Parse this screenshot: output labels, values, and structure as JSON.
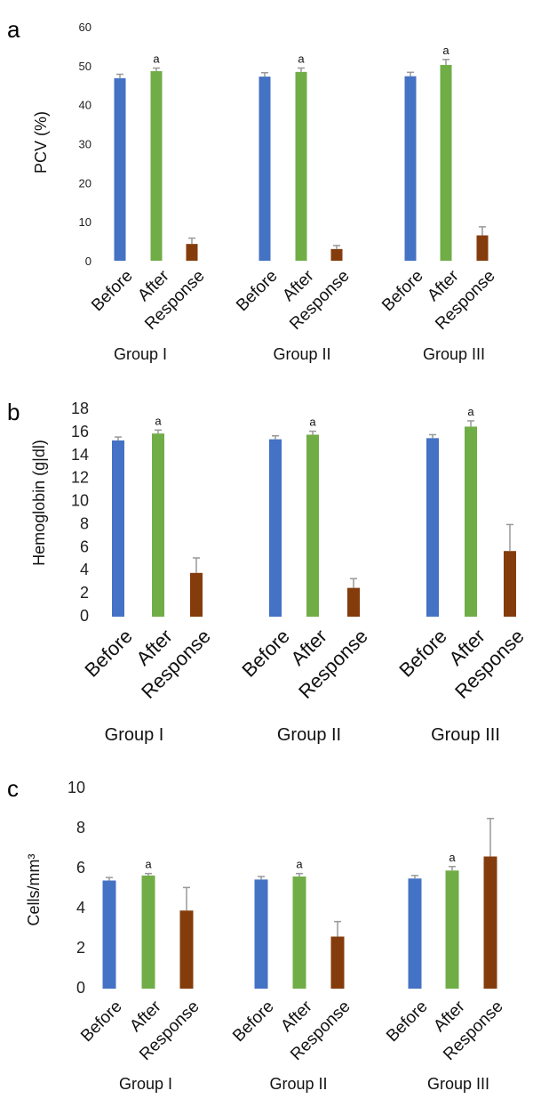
{
  "colors": {
    "before": "#4472c4",
    "after": "#70ad47",
    "response": "#843c0c",
    "error_bar": "#999999"
  },
  "categories": [
    "Before",
    "After",
    "Response"
  ],
  "chart_data": [
    {
      "type": "bar",
      "panel": "a",
      "ylabel": "PCV (%)",
      "ylim": [
        0,
        60
      ],
      "yticks": [
        "0",
        "10",
        "20",
        "30",
        "40",
        "50",
        "60"
      ],
      "groups": [
        "Group I",
        "Group II",
        "Group III"
      ],
      "series": [
        {
          "key": "before",
          "values": [
            46.8,
            47.2,
            47.3
          ],
          "errors": [
            1.0,
            1.0,
            1.0
          ]
        },
        {
          "key": "after",
          "values": [
            48.6,
            48.4,
            50.2
          ],
          "errors": [
            0.8,
            1.0,
            1.4
          ]
        },
        {
          "key": "response",
          "values": [
            4.3,
            3.0,
            6.5
          ],
          "errors": [
            1.5,
            0.9,
            2.2
          ]
        }
      ],
      "significance": [
        "a",
        "a",
        "a"
      ]
    },
    {
      "type": "bar",
      "panel": "b",
      "ylabel": "Hemoglobin (g|dl)",
      "ylim": [
        0,
        18
      ],
      "yticks": [
        "0",
        "2",
        "4",
        "6",
        "8",
        "10",
        "12",
        "14",
        "16",
        "18"
      ],
      "groups": [
        "Group I",
        "Group II",
        "Group III"
      ],
      "series": [
        {
          "key": "before",
          "values": [
            15.3,
            15.4,
            15.5
          ],
          "errors": [
            0.3,
            0.3,
            0.3
          ]
        },
        {
          "key": "after",
          "values": [
            15.9,
            15.8,
            16.5
          ],
          "errors": [
            0.3,
            0.3,
            0.5
          ]
        },
        {
          "key": "response",
          "values": [
            3.8,
            2.5,
            5.7
          ],
          "errors": [
            1.3,
            0.8,
            2.3
          ]
        }
      ],
      "significance": [
        "a",
        "a",
        "a"
      ]
    },
    {
      "type": "bar",
      "panel": "c",
      "ylabel": "Cells/mm³",
      "ylim": [
        0,
        10
      ],
      "yticks": [
        "0",
        "2",
        "4",
        "6",
        "8",
        "10"
      ],
      "groups": [
        "Group I",
        "Group II",
        "Group III"
      ],
      "series": [
        {
          "key": "before",
          "values": [
            5.4,
            5.45,
            5.5
          ],
          "errors": [
            0.15,
            0.15,
            0.15
          ]
        },
        {
          "key": "after",
          "values": [
            5.65,
            5.6,
            5.9
          ],
          "errors": [
            0.1,
            0.15,
            0.2
          ]
        },
        {
          "key": "response",
          "values": [
            3.9,
            2.6,
            6.6
          ],
          "errors": [
            1.15,
            0.75,
            1.9
          ]
        }
      ],
      "significance": [
        "a",
        "a",
        "a"
      ]
    }
  ]
}
